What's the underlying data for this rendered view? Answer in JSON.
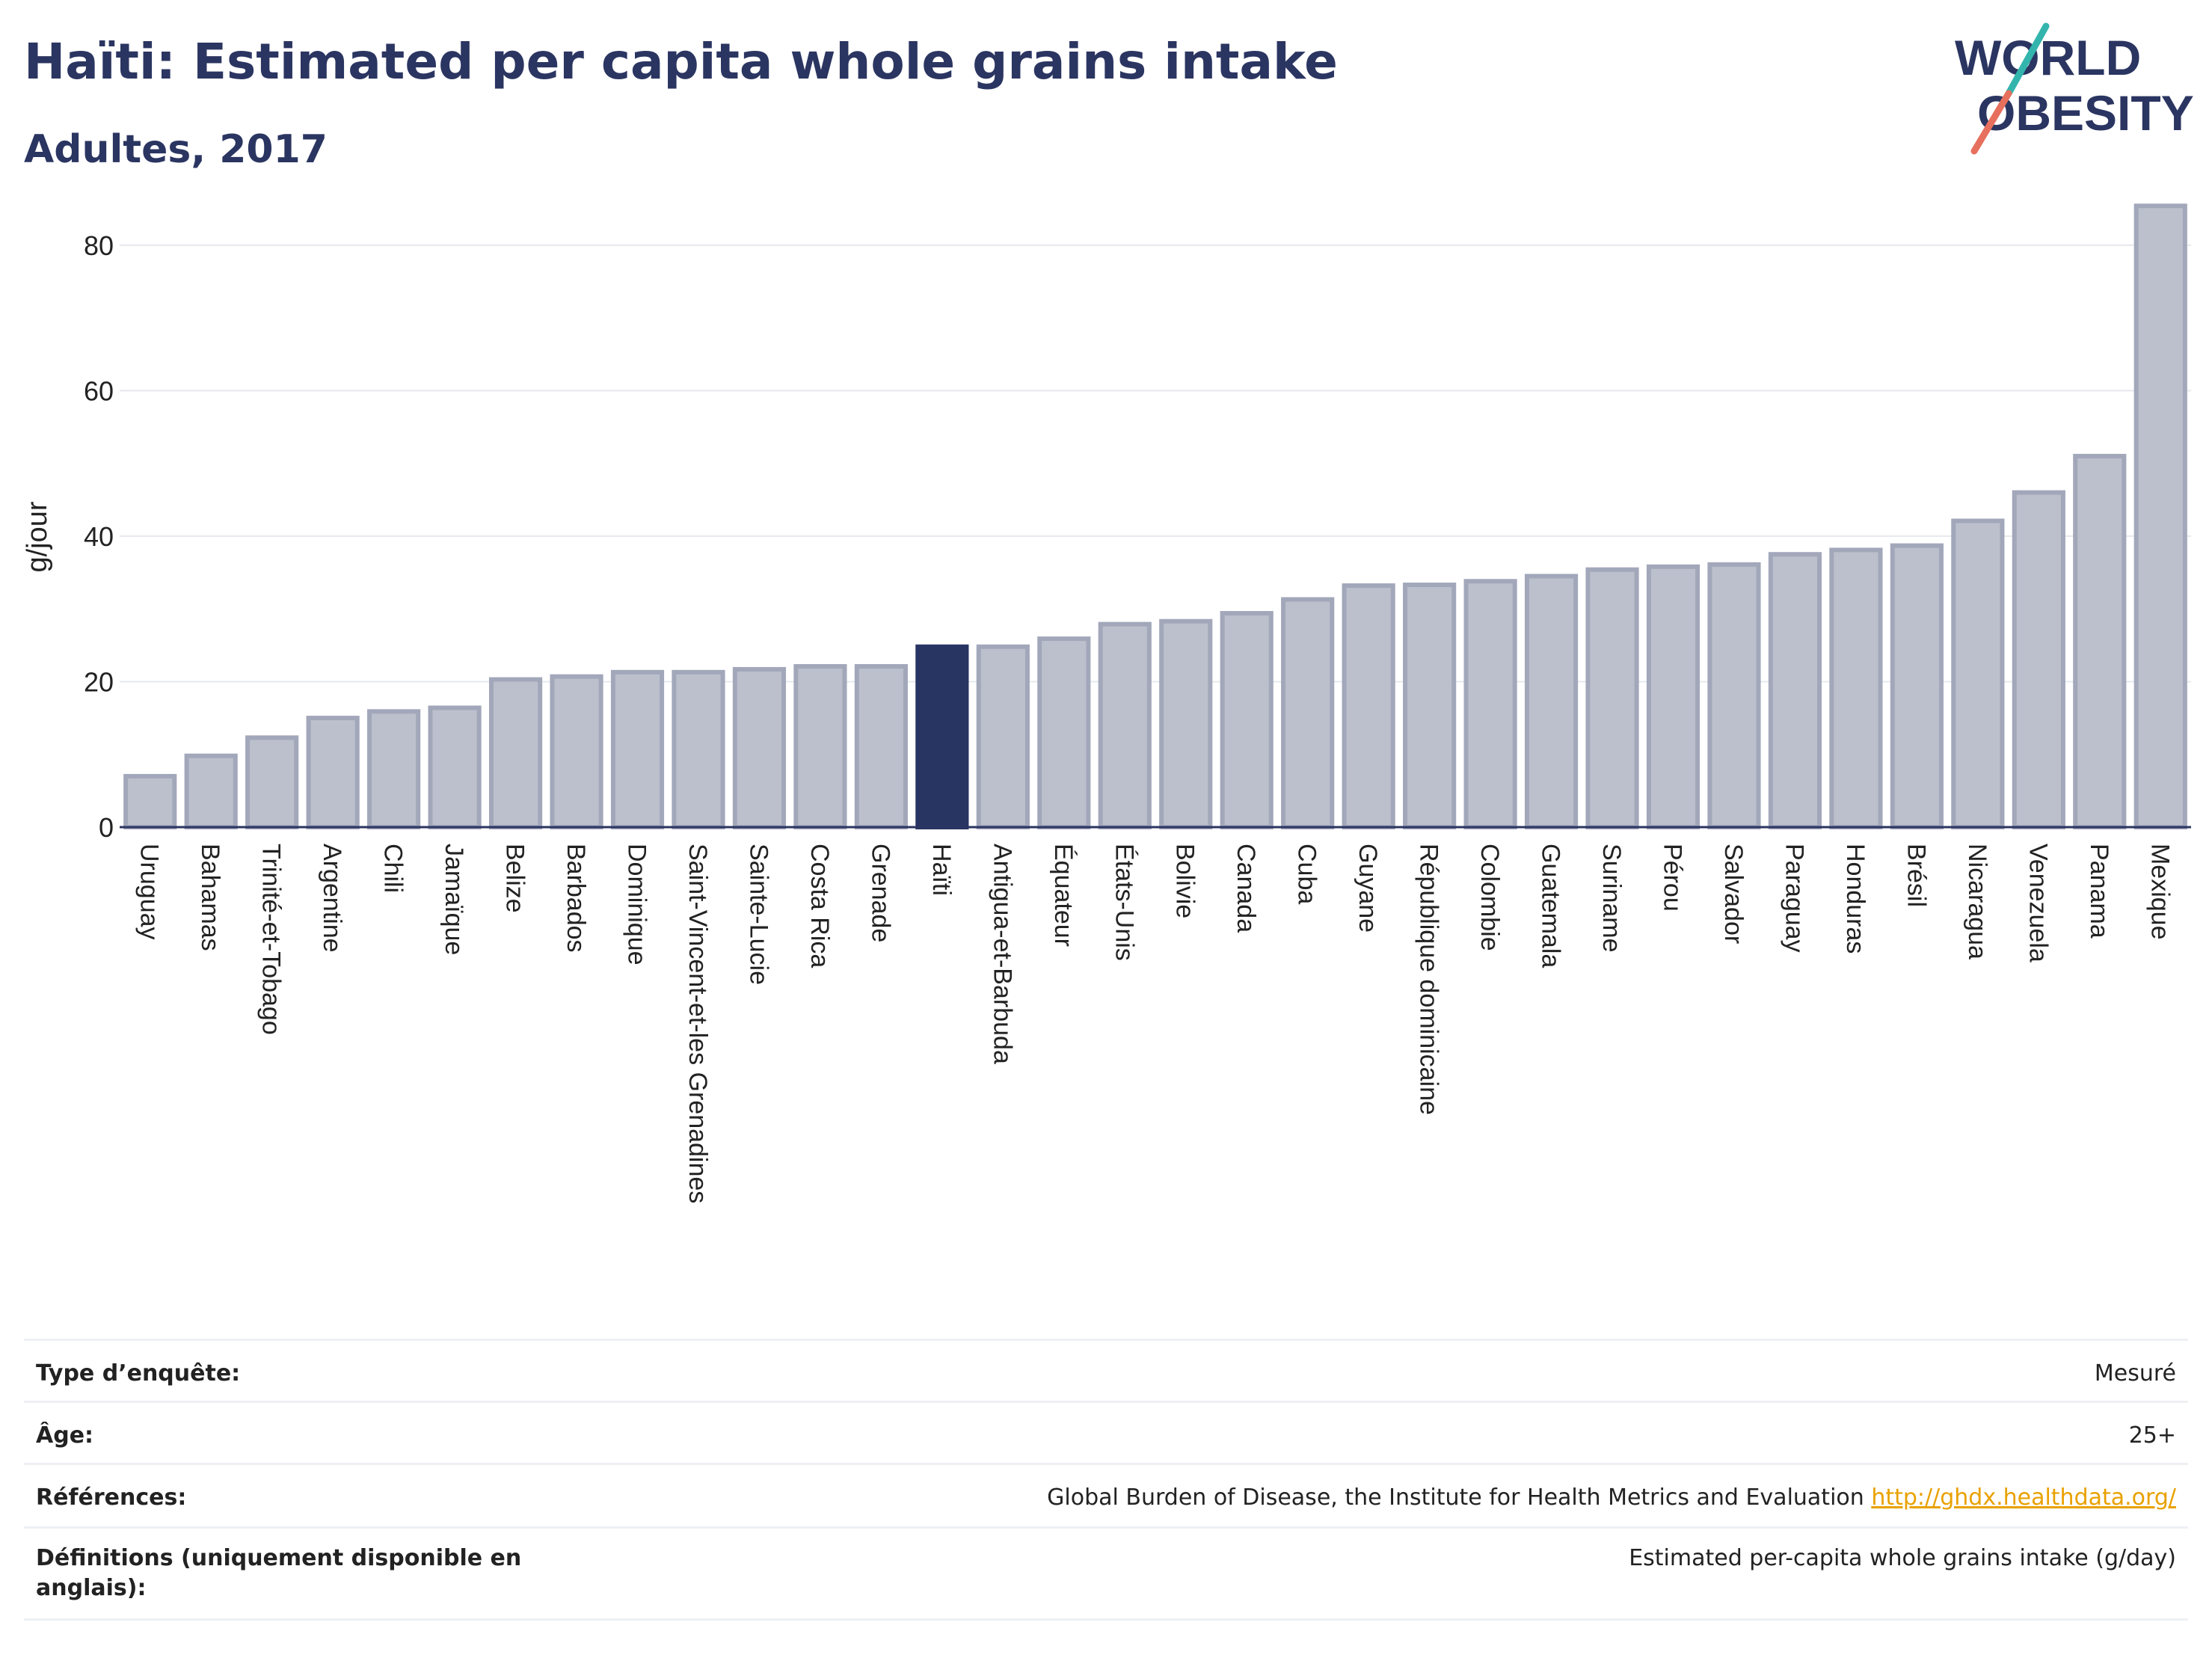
{
  "header": {
    "title": "Haïti: Estimated per capita whole grains intake",
    "subtitle": "Adultes, 2017",
    "logo_line1": "WORLD",
    "logo_line2": "OBESITY"
  },
  "colors": {
    "title": "#2b3561",
    "highlight_bar": "#283462",
    "bar_fill": "#bcc0cd",
    "bar_stroke": "#a2a7ba",
    "link": "#e9a100",
    "logo_teal": "#33b5ad",
    "logo_coral": "#e76f5d"
  },
  "chart_data": {
    "type": "bar",
    "title": "Haïti: Estimated per capita whole grains intake",
    "subtitle": "Adultes, 2017",
    "ylabel": "g/jour",
    "xlabel": "",
    "ylim": [
      0,
      88
    ],
    "yticks": [
      0,
      20,
      40,
      60,
      80
    ],
    "grid": true,
    "highlight": "Haïti",
    "categories": [
      "Uruguay",
      "Bahamas",
      "Trinité-et-Tobago",
      "Argentine",
      "Chili",
      "Jamaïque",
      "Belize",
      "Barbados",
      "Dominique",
      "Saint-Vincent-et-les Grenadines",
      "Sainte-Lucie",
      "Costa Rica",
      "Grenade",
      "Haïti",
      "Antigua-et-Barbuda",
      "Équateur",
      "États-Unis",
      "Bolivie",
      "Canada",
      "Cuba",
      "Guyane",
      "République dominicaine",
      "Colombie",
      "Guatemala",
      "Suriname",
      "Pérou",
      "Salvador",
      "Paraguay",
      "Honduras",
      "Brésil",
      "Nicaragua",
      "Venezuela",
      "Panama",
      "Mexique"
    ],
    "values": [
      7.0,
      9.8,
      12.3,
      15.0,
      15.9,
      16.4,
      20.3,
      20.7,
      21.3,
      21.3,
      21.7,
      22.1,
      22.1,
      24.8,
      24.8,
      25.9,
      27.9,
      28.3,
      29.4,
      31.3,
      33.2,
      33.3,
      33.8,
      34.5,
      35.4,
      35.8,
      36.1,
      37.5,
      38.1,
      38.7,
      42.1,
      46.0,
      51.0,
      85.4
    ]
  },
  "info": {
    "rows": [
      {
        "label": "Type d’enquête:",
        "value": "Mesuré",
        "link": ""
      },
      {
        "label": "Âge:",
        "value": "25+",
        "link": ""
      },
      {
        "label": "Références:",
        "value": "Global Burden of Disease, the Institute for Health Metrics and Evaluation ",
        "link": "http://ghdx.healthdata.org/"
      },
      {
        "label": "Définitions (uniquement disponible en anglais):",
        "value": "Estimated per-capita whole grains intake (g/day)",
        "link": ""
      }
    ]
  }
}
